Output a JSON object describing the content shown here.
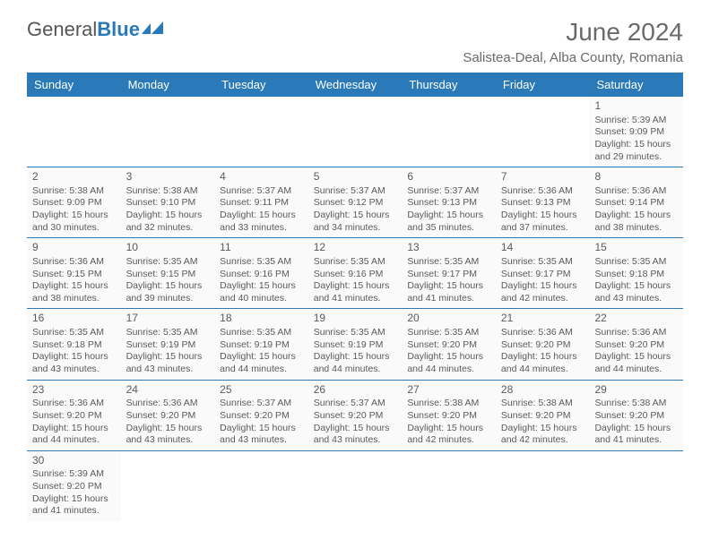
{
  "logo": {
    "part1": "General",
    "part2": "Blue",
    "text_color": "#555555",
    "accent_color": "#2a7ab9"
  },
  "title": "June 2024",
  "location": "Salistea-Deal, Alba County, Romania",
  "colors": {
    "header_bg": "#2a7ab9",
    "header_text": "#ffffff",
    "row_border": "#2a7ab9",
    "cell_bg": "#fafafa",
    "text": "#5a5a5a",
    "page_bg": "#ffffff"
  },
  "fonts": {
    "title_size": 28,
    "location_size": 15,
    "day_header_size": 13,
    "cell_size": 10.5,
    "daynum_size": 12
  },
  "layout": {
    "cols": 7,
    "weeks": 6
  },
  "day_headers": [
    "Sunday",
    "Monday",
    "Tuesday",
    "Wednesday",
    "Thursday",
    "Friday",
    "Saturday"
  ],
  "weeks": [
    [
      null,
      null,
      null,
      null,
      null,
      null,
      {
        "n": "1",
        "sr": "Sunrise: 5:39 AM",
        "ss": "Sunset: 9:09 PM",
        "d1": "Daylight: 15 hours",
        "d2": "and 29 minutes."
      }
    ],
    [
      {
        "n": "2",
        "sr": "Sunrise: 5:38 AM",
        "ss": "Sunset: 9:09 PM",
        "d1": "Daylight: 15 hours",
        "d2": "and 30 minutes."
      },
      {
        "n": "3",
        "sr": "Sunrise: 5:38 AM",
        "ss": "Sunset: 9:10 PM",
        "d1": "Daylight: 15 hours",
        "d2": "and 32 minutes."
      },
      {
        "n": "4",
        "sr": "Sunrise: 5:37 AM",
        "ss": "Sunset: 9:11 PM",
        "d1": "Daylight: 15 hours",
        "d2": "and 33 minutes."
      },
      {
        "n": "5",
        "sr": "Sunrise: 5:37 AM",
        "ss": "Sunset: 9:12 PM",
        "d1": "Daylight: 15 hours",
        "d2": "and 34 minutes."
      },
      {
        "n": "6",
        "sr": "Sunrise: 5:37 AM",
        "ss": "Sunset: 9:13 PM",
        "d1": "Daylight: 15 hours",
        "d2": "and 35 minutes."
      },
      {
        "n": "7",
        "sr": "Sunrise: 5:36 AM",
        "ss": "Sunset: 9:13 PM",
        "d1": "Daylight: 15 hours",
        "d2": "and 37 minutes."
      },
      {
        "n": "8",
        "sr": "Sunrise: 5:36 AM",
        "ss": "Sunset: 9:14 PM",
        "d1": "Daylight: 15 hours",
        "d2": "and 38 minutes."
      }
    ],
    [
      {
        "n": "9",
        "sr": "Sunrise: 5:36 AM",
        "ss": "Sunset: 9:15 PM",
        "d1": "Daylight: 15 hours",
        "d2": "and 38 minutes."
      },
      {
        "n": "10",
        "sr": "Sunrise: 5:35 AM",
        "ss": "Sunset: 9:15 PM",
        "d1": "Daylight: 15 hours",
        "d2": "and 39 minutes."
      },
      {
        "n": "11",
        "sr": "Sunrise: 5:35 AM",
        "ss": "Sunset: 9:16 PM",
        "d1": "Daylight: 15 hours",
        "d2": "and 40 minutes."
      },
      {
        "n": "12",
        "sr": "Sunrise: 5:35 AM",
        "ss": "Sunset: 9:16 PM",
        "d1": "Daylight: 15 hours",
        "d2": "and 41 minutes."
      },
      {
        "n": "13",
        "sr": "Sunrise: 5:35 AM",
        "ss": "Sunset: 9:17 PM",
        "d1": "Daylight: 15 hours",
        "d2": "and 41 minutes."
      },
      {
        "n": "14",
        "sr": "Sunrise: 5:35 AM",
        "ss": "Sunset: 9:17 PM",
        "d1": "Daylight: 15 hours",
        "d2": "and 42 minutes."
      },
      {
        "n": "15",
        "sr": "Sunrise: 5:35 AM",
        "ss": "Sunset: 9:18 PM",
        "d1": "Daylight: 15 hours",
        "d2": "and 43 minutes."
      }
    ],
    [
      {
        "n": "16",
        "sr": "Sunrise: 5:35 AM",
        "ss": "Sunset: 9:18 PM",
        "d1": "Daylight: 15 hours",
        "d2": "and 43 minutes."
      },
      {
        "n": "17",
        "sr": "Sunrise: 5:35 AM",
        "ss": "Sunset: 9:19 PM",
        "d1": "Daylight: 15 hours",
        "d2": "and 43 minutes."
      },
      {
        "n": "18",
        "sr": "Sunrise: 5:35 AM",
        "ss": "Sunset: 9:19 PM",
        "d1": "Daylight: 15 hours",
        "d2": "and 44 minutes."
      },
      {
        "n": "19",
        "sr": "Sunrise: 5:35 AM",
        "ss": "Sunset: 9:19 PM",
        "d1": "Daylight: 15 hours",
        "d2": "and 44 minutes."
      },
      {
        "n": "20",
        "sr": "Sunrise: 5:35 AM",
        "ss": "Sunset: 9:20 PM",
        "d1": "Daylight: 15 hours",
        "d2": "and 44 minutes."
      },
      {
        "n": "21",
        "sr": "Sunrise: 5:36 AM",
        "ss": "Sunset: 9:20 PM",
        "d1": "Daylight: 15 hours",
        "d2": "and 44 minutes."
      },
      {
        "n": "22",
        "sr": "Sunrise: 5:36 AM",
        "ss": "Sunset: 9:20 PM",
        "d1": "Daylight: 15 hours",
        "d2": "and 44 minutes."
      }
    ],
    [
      {
        "n": "23",
        "sr": "Sunrise: 5:36 AM",
        "ss": "Sunset: 9:20 PM",
        "d1": "Daylight: 15 hours",
        "d2": "and 44 minutes."
      },
      {
        "n": "24",
        "sr": "Sunrise: 5:36 AM",
        "ss": "Sunset: 9:20 PM",
        "d1": "Daylight: 15 hours",
        "d2": "and 43 minutes."
      },
      {
        "n": "25",
        "sr": "Sunrise: 5:37 AM",
        "ss": "Sunset: 9:20 PM",
        "d1": "Daylight: 15 hours",
        "d2": "and 43 minutes."
      },
      {
        "n": "26",
        "sr": "Sunrise: 5:37 AM",
        "ss": "Sunset: 9:20 PM",
        "d1": "Daylight: 15 hours",
        "d2": "and 43 minutes."
      },
      {
        "n": "27",
        "sr": "Sunrise: 5:38 AM",
        "ss": "Sunset: 9:20 PM",
        "d1": "Daylight: 15 hours",
        "d2": "and 42 minutes."
      },
      {
        "n": "28",
        "sr": "Sunrise: 5:38 AM",
        "ss": "Sunset: 9:20 PM",
        "d1": "Daylight: 15 hours",
        "d2": "and 42 minutes."
      },
      {
        "n": "29",
        "sr": "Sunrise: 5:38 AM",
        "ss": "Sunset: 9:20 PM",
        "d1": "Daylight: 15 hours",
        "d2": "and 41 minutes."
      }
    ],
    [
      {
        "n": "30",
        "sr": "Sunrise: 5:39 AM",
        "ss": "Sunset: 9:20 PM",
        "d1": "Daylight: 15 hours",
        "d2": "and 41 minutes."
      },
      null,
      null,
      null,
      null,
      null,
      null
    ]
  ]
}
